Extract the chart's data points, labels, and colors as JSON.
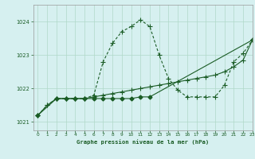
{
  "title": "Graphe pression niveau de la mer (hPa)",
  "bg_color": "#d6f0f0",
  "grid_color": "#b0d8c8",
  "line_color": "#1a5c25",
  "xlim": [
    -0.5,
    23
  ],
  "ylim": [
    1020.75,
    1024.5
  ],
  "yticks": [
    1021,
    1022,
    1023,
    1024
  ],
  "xticks": [
    0,
    1,
    2,
    3,
    4,
    5,
    6,
    7,
    8,
    9,
    10,
    11,
    12,
    13,
    14,
    15,
    16,
    17,
    18,
    19,
    20,
    21,
    22,
    23
  ],
  "s1_x": [
    0,
    1,
    2,
    3,
    4,
    5,
    6,
    7,
    8,
    9,
    10,
    11,
    12,
    13,
    14,
    15,
    16,
    17,
    18,
    19,
    20,
    21,
    22,
    23
  ],
  "s1_y": [
    1021.2,
    1021.5,
    1021.7,
    1021.7,
    1021.7,
    1021.7,
    1021.75,
    1021.8,
    1021.85,
    1021.9,
    1021.95,
    1022.0,
    1022.05,
    1022.1,
    1022.15,
    1022.2,
    1022.25,
    1022.3,
    1022.35,
    1022.4,
    1022.5,
    1022.65,
    1022.85,
    1023.45
  ],
  "s2_x": [
    0,
    1,
    2,
    3,
    4,
    5,
    6,
    7,
    8,
    9,
    10,
    11,
    12,
    13,
    14,
    15,
    16,
    17,
    18,
    19,
    20,
    21,
    22,
    23
  ],
  "s2_y": [
    1021.2,
    1021.5,
    1021.7,
    1021.7,
    1021.7,
    1021.7,
    1021.8,
    1022.8,
    1023.35,
    1023.7,
    1023.85,
    1024.05,
    1023.85,
    1023.0,
    1022.3,
    1021.95,
    1021.75,
    1021.75,
    1021.75,
    1021.75,
    1022.1,
    1022.8,
    1023.05,
    1023.45
  ],
  "s3_x": [
    0,
    2,
    3,
    4,
    5,
    6,
    7,
    8,
    9,
    10,
    11,
    12,
    23
  ],
  "s3_y": [
    1021.2,
    1021.7,
    1021.7,
    1021.7,
    1021.7,
    1021.7,
    1021.7,
    1021.7,
    1021.7,
    1021.7,
    1021.75,
    1021.75,
    1023.45
  ]
}
